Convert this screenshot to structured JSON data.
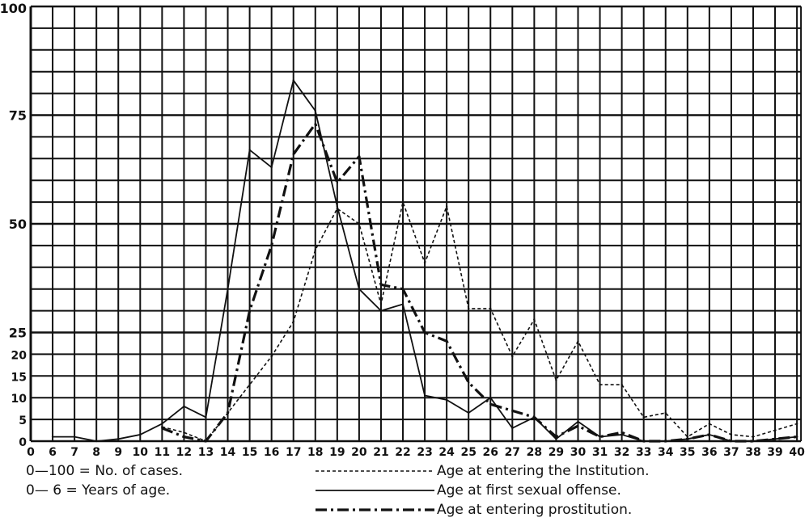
{
  "chart_data": {
    "type": "line",
    "title": "",
    "xlabel": "",
    "ylabel": "",
    "x": [
      0,
      6,
      7,
      8,
      9,
      10,
      11,
      12,
      13,
      14,
      15,
      16,
      17,
      18,
      19,
      20,
      21,
      22,
      23,
      24,
      25,
      26,
      27,
      28,
      29,
      30,
      31,
      32,
      33,
      34,
      35,
      36,
      37,
      38,
      39,
      40
    ],
    "x_tick_labels": [
      "0",
      "6",
      "7",
      "8",
      "9",
      "10",
      "11",
      "12",
      "13",
      "14",
      "15",
      "16",
      "17",
      "18",
      "19",
      "20",
      "21",
      "22",
      "23",
      "24",
      "25",
      "26",
      "27",
      "28",
      "29",
      "30",
      "31",
      "32",
      "33",
      "34",
      "35",
      "36",
      "37",
      "38",
      "39",
      "40"
    ],
    "y_tick_labels": [
      "0",
      "5",
      "10",
      "15",
      "20",
      "25",
      "50",
      "75",
      "100"
    ],
    "ylim": [
      0,
      100
    ],
    "grid": true,
    "legend_position": "bottom",
    "scale_notes": [
      "0—100 = No. of cases.",
      "0— 6 = Years of age."
    ],
    "series": [
      {
        "name": "Age at entering the Institution.",
        "style": "dotted",
        "x": [
          11,
          12,
          13,
          14,
          15,
          16,
          17,
          18,
          19,
          20,
          21,
          22,
          23,
          24,
          25,
          26,
          27,
          28,
          29,
          30,
          31,
          32,
          33,
          34,
          35,
          36,
          37,
          38,
          39,
          40
        ],
        "values": [
          3.3,
          2,
          0,
          6.5,
          13,
          19.5,
          27.5,
          44,
          53.5,
          50,
          31.5,
          55,
          41,
          54,
          30.5,
          30.5,
          19.5,
          28,
          14,
          23,
          13,
          13,
          5.5,
          6.5,
          1,
          4,
          1.5,
          1,
          2.5,
          4
        ]
      },
      {
        "name": "Age at first sexual offense.",
        "style": "solid",
        "x": [
          6,
          7,
          8,
          9,
          10,
          11,
          12,
          13,
          14,
          15,
          16,
          17,
          18,
          19,
          20,
          21,
          22,
          23,
          24,
          25,
          26,
          27,
          28,
          29,
          30,
          31,
          32,
          33,
          34,
          35,
          36,
          37,
          38,
          39,
          40
        ],
        "values": [
          1,
          1,
          0,
          0.5,
          1.5,
          4,
          8,
          5.5,
          35,
          67,
          63,
          83,
          76,
          54,
          35,
          30,
          31.5,
          10.5,
          9.5,
          6.5,
          10,
          3,
          5.5,
          0.5,
          4.5,
          1,
          1.5,
          0,
          0,
          0.5,
          1.5,
          0,
          0,
          0.5,
          1
        ]
      },
      {
        "name": "Age at entering prostitution.",
        "style": "dash-dot",
        "x": [
          11,
          12,
          13,
          14,
          15,
          16,
          17,
          18,
          19,
          20,
          21,
          22,
          23,
          24,
          25,
          26,
          27,
          28,
          29,
          30,
          31,
          32,
          33,
          34,
          35,
          36,
          37,
          38,
          39,
          40
        ],
        "values": [
          3,
          1,
          0,
          6.5,
          30,
          45,
          66,
          73,
          59.5,
          65.5,
          36,
          35,
          25,
          23,
          13.5,
          8.5,
          7,
          5.5,
          1,
          3.5,
          1,
          2,
          0,
          0,
          0.5,
          1.5,
          0,
          0,
          0.5,
          1
        ]
      }
    ]
  }
}
